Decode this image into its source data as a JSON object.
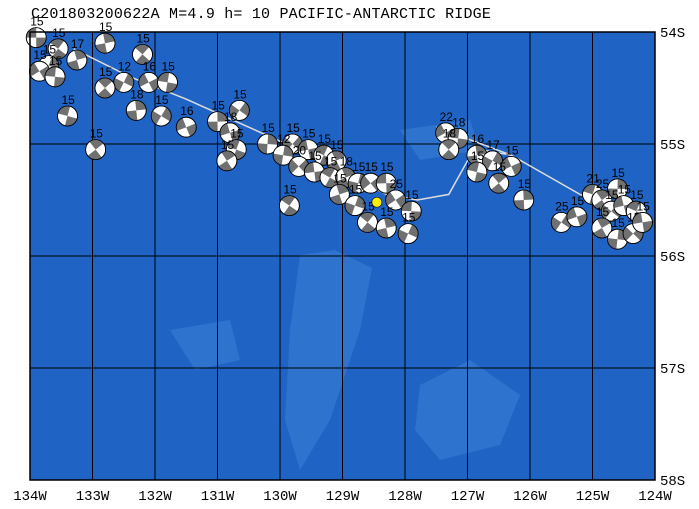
{
  "header": {
    "title": "C201803200622A M=4.9 h= 10 PACIFIC-ANTARCTIC RIDGE"
  },
  "map": {
    "lon_range": [
      -134,
      -124
    ],
    "lat_range": [
      -58,
      -54
    ],
    "lon_ticks": [
      {
        "lon": -134,
        "label": "134W"
      },
      {
        "lon": -133,
        "label": "133W"
      },
      {
        "lon": -132,
        "label": "132W"
      },
      {
        "lon": -131,
        "label": "131W"
      },
      {
        "lon": -130,
        "label": "130W"
      },
      {
        "lon": -129,
        "label": "129W"
      },
      {
        "lon": -128,
        "label": "128W"
      },
      {
        "lon": -127,
        "label": "127W"
      },
      {
        "lon": -126,
        "label": "126W"
      },
      {
        "lon": -125,
        "label": "125W"
      },
      {
        "lon": -124,
        "label": "124W"
      }
    ],
    "lat_ticks": [
      {
        "lat": -54,
        "label": "54S"
      },
      {
        "lat": -55,
        "label": "55S"
      },
      {
        "lat": -56,
        "label": "56S"
      },
      {
        "lat": -57,
        "label": "57S"
      },
      {
        "lat": -58,
        "label": "58S"
      }
    ],
    "colors": {
      "ocean": "#1f63c4",
      "ocean_shallow": "#3a82d6",
      "gridline": "#000000",
      "plate_boundary": "#dddddd",
      "beachball_dark": "#707070",
      "beachball_light": "#ffffff",
      "highlight_event": "#ffee00"
    },
    "plate_boundary": [
      [
        -133.3,
        -54.15
      ],
      [
        -132.4,
        -54.4
      ],
      [
        -131.5,
        -54.6
      ],
      [
        -130.5,
        -54.85
      ],
      [
        -129.5,
        -55.1
      ],
      [
        -128.8,
        -55.3
      ],
      [
        -128.3,
        -55.45
      ],
      [
        -127.8,
        -55.5
      ],
      [
        -127.3,
        -55.45
      ],
      [
        -127.0,
        -55.15
      ],
      [
        -126.9,
        -55.1
      ],
      [
        -126.8,
        -55.05
      ],
      [
        -126.3,
        -55.1
      ],
      [
        -125.2,
        -55.45
      ],
      [
        -124.7,
        -55.6
      ]
    ],
    "plate_boundary_north": [
      [
        -127.5,
        -54.85
      ],
      [
        -126.3,
        -55.1
      ]
    ],
    "selected_event": {
      "lon": -128.45,
      "lat": -55.52
    },
    "events": [
      {
        "lon": -133.9,
        "lat": -54.05,
        "depth": "15"
      },
      {
        "lon": -133.55,
        "lat": -54.15,
        "depth": "15"
      },
      {
        "lon": -133.25,
        "lat": -54.25,
        "depth": "17"
      },
      {
        "lon": -133.7,
        "lat": -54.3,
        "depth": "15"
      },
      {
        "lon": -133.85,
        "lat": -54.35,
        "depth": "15"
      },
      {
        "lon": -133.6,
        "lat": -54.4,
        "depth": "15"
      },
      {
        "lon": -132.2,
        "lat": -54.2,
        "depth": "15"
      },
      {
        "lon": -132.8,
        "lat": -54.1,
        "depth": "15"
      },
      {
        "lon": -132.5,
        "lat": -54.45,
        "depth": "12"
      },
      {
        "lon": -132.1,
        "lat": -54.45,
        "depth": "16"
      },
      {
        "lon": -131.8,
        "lat": -54.45,
        "depth": "15"
      },
      {
        "lon": -132.8,
        "lat": -54.5,
        "depth": "15"
      },
      {
        "lon": -132.3,
        "lat": -54.7,
        "depth": "18"
      },
      {
        "lon": -131.9,
        "lat": -54.75,
        "depth": "15"
      },
      {
        "lon": -131.5,
        "lat": -54.85,
        "depth": "16"
      },
      {
        "lon": -133.4,
        "lat": -54.75,
        "depth": "15"
      },
      {
        "lon": -132.95,
        "lat": -55.05,
        "depth": "15"
      },
      {
        "lon": -131.0,
        "lat": -54.8,
        "depth": "15"
      },
      {
        "lon": -130.65,
        "lat": -54.7,
        "depth": "15"
      },
      {
        "lon": -130.8,
        "lat": -54.9,
        "depth": "18"
      },
      {
        "lon": -130.7,
        "lat": -55.05,
        "depth": "15"
      },
      {
        "lon": -130.85,
        "lat": -55.15,
        "depth": "15"
      },
      {
        "lon": -130.2,
        "lat": -55.0,
        "depth": "15"
      },
      {
        "lon": -129.8,
        "lat": -55.0,
        "depth": "15"
      },
      {
        "lon": -129.55,
        "lat": -55.05,
        "depth": "15"
      },
      {
        "lon": -129.3,
        "lat": -55.1,
        "depth": "15"
      },
      {
        "lon": -129.1,
        "lat": -55.15,
        "depth": "15"
      },
      {
        "lon": -129.95,
        "lat": -55.1,
        "depth": "12"
      },
      {
        "lon": -129.7,
        "lat": -55.2,
        "depth": "20"
      },
      {
        "lon": -129.45,
        "lat": -55.25,
        "depth": "15"
      },
      {
        "lon": -129.2,
        "lat": -55.3,
        "depth": "15"
      },
      {
        "lon": -128.95,
        "lat": -55.3,
        "depth": "18"
      },
      {
        "lon": -128.75,
        "lat": -55.35,
        "depth": "15"
      },
      {
        "lon": -128.55,
        "lat": -55.35,
        "depth": "15"
      },
      {
        "lon": -128.3,
        "lat": -55.35,
        "depth": "15"
      },
      {
        "lon": -129.85,
        "lat": -55.55,
        "depth": "15"
      },
      {
        "lon": -129.05,
        "lat": -55.45,
        "depth": "15"
      },
      {
        "lon": -128.8,
        "lat": -55.55,
        "depth": "15"
      },
      {
        "lon": -128.15,
        "lat": -55.5,
        "depth": "25"
      },
      {
        "lon": -127.9,
        "lat": -55.6,
        "depth": "15"
      },
      {
        "lon": -128.6,
        "lat": -55.7,
        "depth": "15"
      },
      {
        "lon": -128.3,
        "lat": -55.75,
        "depth": "15"
      },
      {
        "lon": -127.95,
        "lat": -55.8,
        "depth": "15"
      },
      {
        "lon": -127.35,
        "lat": -54.9,
        "depth": "22"
      },
      {
        "lon": -127.15,
        "lat": -54.95,
        "depth": "18"
      },
      {
        "lon": -127.3,
        "lat": -55.05,
        "depth": "18"
      },
      {
        "lon": -126.85,
        "lat": -55.1,
        "depth": "16"
      },
      {
        "lon": -126.6,
        "lat": -55.15,
        "depth": "17"
      },
      {
        "lon": -126.3,
        "lat": -55.2,
        "depth": "15"
      },
      {
        "lon": -126.85,
        "lat": -55.25,
        "depth": "15"
      },
      {
        "lon": -126.5,
        "lat": -55.35,
        "depth": "15"
      },
      {
        "lon": -126.1,
        "lat": -55.5,
        "depth": "15"
      },
      {
        "lon": -125.5,
        "lat": -55.7,
        "depth": "25"
      },
      {
        "lon": -125.25,
        "lat": -55.65,
        "depth": "15"
      },
      {
        "lon": -125.0,
        "lat": -55.45,
        "depth": "21"
      },
      {
        "lon": -124.85,
        "lat": -55.5,
        "depth": "25"
      },
      {
        "lon": -124.6,
        "lat": -55.4,
        "depth": "15"
      },
      {
        "lon": -124.7,
        "lat": -55.6,
        "depth": "15"
      },
      {
        "lon": -124.5,
        "lat": -55.55,
        "depth": "15"
      },
      {
        "lon": -124.3,
        "lat": -55.6,
        "depth": "15"
      },
      {
        "lon": -124.85,
        "lat": -55.75,
        "depth": "15"
      },
      {
        "lon": -124.6,
        "lat": -55.85,
        "depth": "15"
      },
      {
        "lon": -124.35,
        "lat": -55.8,
        "depth": "15"
      },
      {
        "lon": -124.2,
        "lat": -55.7,
        "depth": "15"
      }
    ]
  }
}
